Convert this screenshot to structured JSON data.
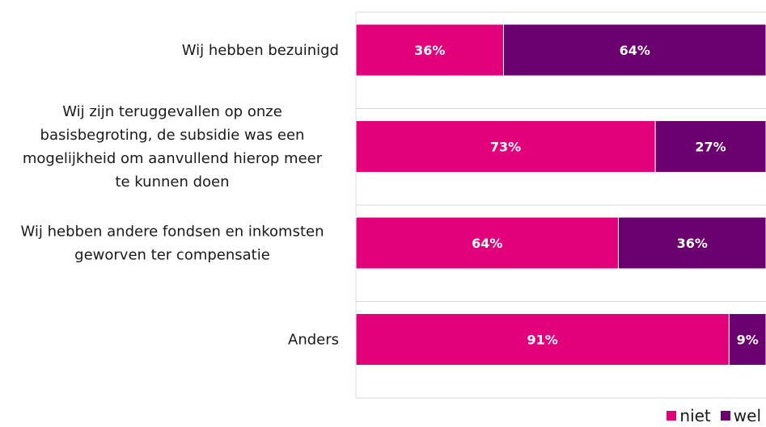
{
  "chart_data": {
    "type": "bar",
    "orientation": "horizontal",
    "stacked": true,
    "categories": [
      "Wij hebben bezuinigd",
      "Wij zijn teruggevallen op onze basisbegroting, de subsidie was een mogelijkheid om aanvullend hierop meer te kunnen doen",
      "Wij hebben andere fondsen en inkomsten geworven ter compensatie",
      "Anders"
    ],
    "category_lines": [
      [
        "Wij hebben bezuinigd"
      ],
      [
        "Wij zijn teruggevallen op onze",
        "basisbegroting, de subsidie was een",
        "mogelijkheid om aanvullend hierop meer",
        "te kunnen doen"
      ],
      [
        "Wij hebben andere fondsen en inkomsten",
        "geworven ter compensatie"
      ],
      [
        "Anders"
      ]
    ],
    "series": [
      {
        "name": "niet",
        "values": [
          36,
          73,
          64,
          91
        ],
        "labels": [
          "36%",
          "73%",
          "64%",
          "91%"
        ],
        "color": "#e3007b"
      },
      {
        "name": "wel",
        "values": [
          64,
          27,
          36,
          9
        ],
        "labels": [
          "64%",
          "27%",
          "36%",
          "9%"
        ],
        "color": "#6b006f"
      }
    ],
    "xlim": [
      0,
      100
    ],
    "grid": true,
    "legend_position": "bottom-right"
  }
}
